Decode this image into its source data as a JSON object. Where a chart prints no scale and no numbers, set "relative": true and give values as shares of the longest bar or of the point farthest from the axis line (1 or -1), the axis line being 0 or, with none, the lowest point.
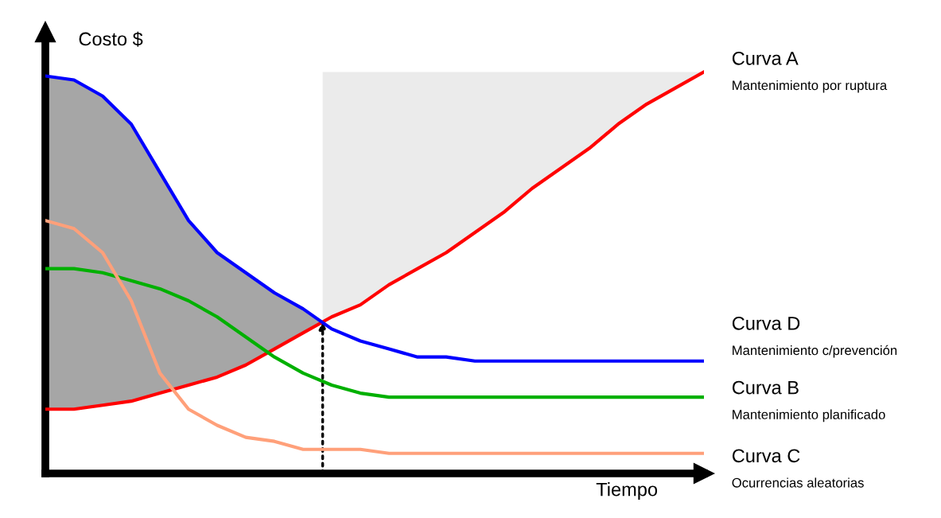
{
  "chart_data": {
    "type": "line",
    "relative": true,
    "ylabel": "Costo $",
    "xlabel": "Tiempo",
    "categories": [
      null,
      null,
      null,
      null,
      null,
      null,
      null,
      null,
      null,
      null,
      null,
      null,
      null,
      null,
      null,
      null,
      null,
      null,
      null,
      null,
      null,
      null,
      null,
      null
    ],
    "series": [
      {
        "name": "Curva A",
        "color": "#ff0000",
        "values": [
          0.16,
          0.16,
          0.17,
          0.18,
          0.2,
          0.22,
          0.24,
          0.27,
          0.31,
          0.35,
          0.39,
          0.42,
          0.47,
          0.51,
          0.55,
          0.6,
          0.65,
          0.71,
          0.76,
          0.81,
          0.87,
          0.92,
          0.96,
          1
        ]
      },
      {
        "name": "Curva D",
        "color": "#0000ff",
        "values": [
          0.99,
          0.98,
          0.94,
          0.87,
          0.75,
          0.63,
          0.55,
          0.5,
          0.45,
          0.41,
          0.36,
          0.33,
          0.31,
          0.29,
          0.29,
          0.28,
          0.28,
          0.28,
          0.28,
          0.28,
          0.28,
          0.28,
          0.28,
          0.28
        ]
      },
      {
        "name": "Curva B",
        "color": "#00b000",
        "values": [
          0.51,
          0.51,
          0.5,
          0.48,
          0.46,
          0.43,
          0.39,
          0.34,
          0.29,
          0.25,
          0.22,
          0.2,
          0.19,
          0.19,
          0.19,
          0.19,
          0.19,
          0.19,
          0.19,
          0.19,
          0.19,
          0.19,
          0.19,
          0.19
        ]
      },
      {
        "name": "Curva C",
        "color": "#ffa07a",
        "values": [
          0.63,
          0.61,
          0.55,
          0.43,
          0.25,
          0.16,
          0.12,
          0.09,
          0.08,
          0.06,
          0.06,
          0.06,
          0.05,
          0.05,
          0.05,
          0.05,
          0.05,
          0.05,
          0.05,
          0.05,
          0.05,
          0.05,
          0.05,
          0.05
        ]
      }
    ],
    "annotations": [
      "Mantenimiento por ruptura",
      "Mantenimiento c/prevención",
      "Mantenimiento planificado",
      "Ocurrencias aleatorias"
    ],
    "legend": false,
    "marker": "none",
    "line_style": "solid"
  }
}
